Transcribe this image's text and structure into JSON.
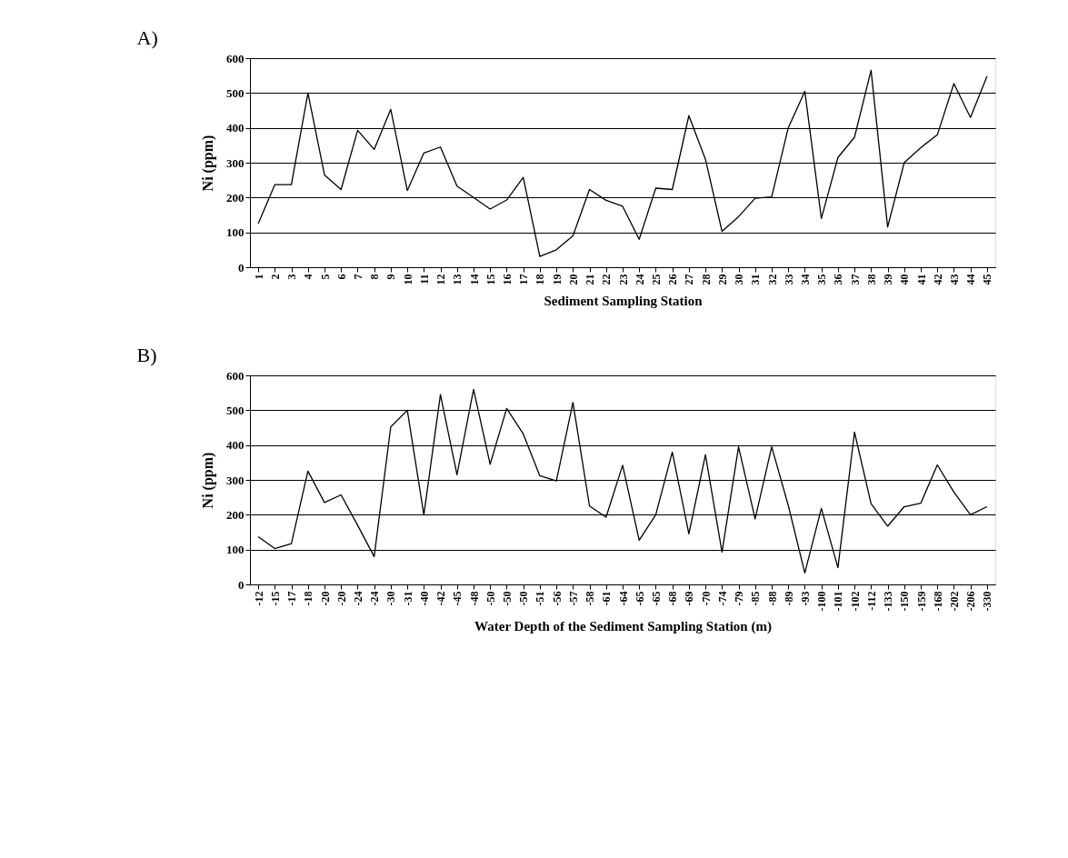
{
  "chart_data": [
    {
      "type": "line",
      "title": "A)",
      "xlabel": "Sediment Sampling Station",
      "ylabel": "Ni (ppm)",
      "categories": [
        "1",
        "2",
        "3",
        "4",
        "5",
        "6",
        "7",
        "8",
        "9",
        "10",
        "11",
        "12",
        "13",
        "14",
        "15",
        "16",
        "17",
        "18",
        "19",
        "20",
        "21",
        "22",
        "23",
        "24",
        "25",
        "26",
        "27",
        "28",
        "29",
        "30",
        "31",
        "32",
        "33",
        "34",
        "35",
        "36",
        "37",
        "38",
        "39",
        "40",
        "41",
        "42",
        "43",
        "44",
        "45"
      ],
      "series": [
        {
          "color": "#000000",
          "values": [
            125,
            237,
            237,
            500,
            265,
            223,
            393,
            338,
            453,
            220,
            328,
            345,
            233,
            200,
            167,
            193,
            258,
            31,
            50,
            90,
            223,
            192,
            175,
            80,
            227,
            223,
            435,
            310,
            103,
            145,
            198,
            202,
            400,
            505,
            140,
            315,
            373,
            565,
            115,
            300,
            343,
            380,
            527,
            430,
            548
          ]
        }
      ],
      "ylim": [
        0,
        600
      ],
      "yticks": [
        0,
        100,
        200,
        300,
        400,
        500,
        600
      ],
      "grid": "y",
      "line_style": "solid"
    },
    {
      "type": "line",
      "title": "B)",
      "xlabel": "Water Depth of the Sediment Sampling Station (m)",
      "ylabel": "Ni (ppm)",
      "categories": [
        "-12",
        "-15",
        "-17",
        "-18",
        "-20",
        "-20",
        "-24",
        "-24",
        "-30",
        "-31",
        "-40",
        "-42",
        "-45",
        "-48",
        "-50",
        "-50",
        "-50",
        "-51",
        "-56",
        "-57",
        "-58",
        "-61",
        "-64",
        "-65",
        "-65",
        "-68",
        "-69",
        "-70",
        "-74",
        "-79",
        "-85",
        "-88",
        "-89",
        "-93",
        "-100",
        "-101",
        "-102",
        "-112",
        "-133",
        "-150",
        "-159",
        "-168",
        "-202",
        "-206",
        "-330"
      ],
      "series": [
        {
          "color": "#000000",
          "values": [
            137,
            103,
            117,
            325,
            235,
            257,
            170,
            80,
            452,
            500,
            200,
            545,
            315,
            560,
            345,
            505,
            432,
            312,
            297,
            522,
            225,
            193,
            342,
            127,
            200,
            380,
            145,
            372,
            93,
            395,
            188,
            395,
            227,
            33,
            218,
            48,
            437,
            232,
            167,
            223,
            233,
            343,
            265,
            200,
            223
          ]
        }
      ],
      "ylim": [
        0,
        600
      ],
      "yticks": [
        0,
        100,
        200,
        300,
        400,
        500,
        600
      ],
      "grid": "y",
      "line_style": "solid"
    }
  ]
}
